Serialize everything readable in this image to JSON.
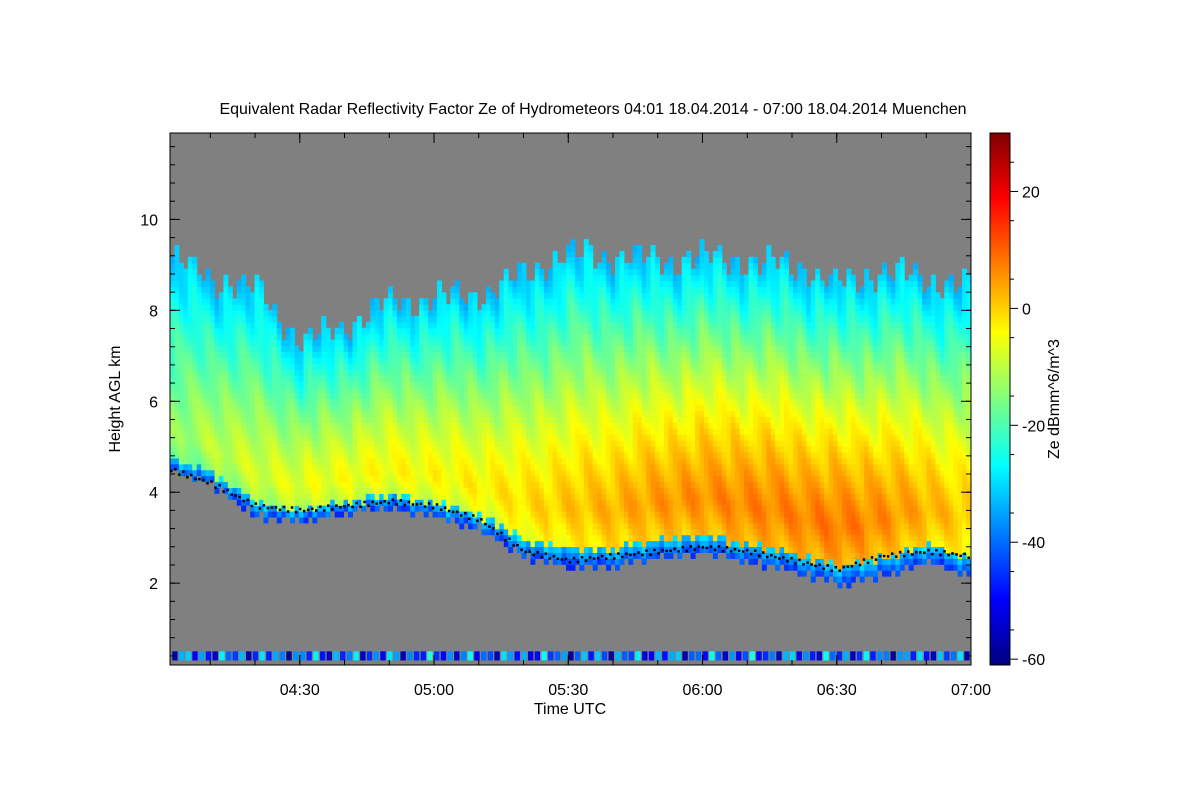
{
  "chart_data": {
    "type": "heatmap",
    "title": "Equivalent Radar Reflectivity Factor Ze of Hydrometeors   04:01 18.04.2014 - 07:00 18.04.2014 Muenchen",
    "xlabel": "Time UTC",
    "ylabel": "Height AGL km",
    "colorbar_label": "Ze dBmm^6/m^3",
    "x_range_minutes": [
      241,
      420
    ],
    "x_ticks": [
      {
        "minute": 270,
        "label": "04:30"
      },
      {
        "minute": 300,
        "label": "05:00"
      },
      {
        "minute": 330,
        "label": "05:30"
      },
      {
        "minute": 360,
        "label": "06:00"
      },
      {
        "minute": 390,
        "label": "06:30"
      },
      {
        "minute": 420,
        "label": "07:00"
      }
    ],
    "ylim_km": [
      0.2,
      11.9
    ],
    "y_ticks": [
      {
        "value": 2,
        "label": "2"
      },
      {
        "value": 4,
        "label": "4"
      },
      {
        "value": 6,
        "label": "6"
      },
      {
        "value": 8,
        "label": "8"
      },
      {
        "value": 10,
        "label": "10"
      }
    ],
    "colorbar_range_dbz": [
      -61,
      30
    ],
    "colorbar_ticks": [
      {
        "value": 20,
        "label": "20"
      },
      {
        "value": 0,
        "label": "0"
      },
      {
        "value": -20,
        "label": "-20"
      },
      {
        "value": -40,
        "label": "-40"
      },
      {
        "value": -60,
        "label": "-60"
      }
    ],
    "colormap": [
      "#00007f",
      "#0000ff",
      "#007fff",
      "#00ffff",
      "#7fff7f",
      "#ffff00",
      "#ff7f00",
      "#ff0000",
      "#7f0000"
    ],
    "background_color": "#808080",
    "cloud_profile": {
      "time_minutes": [
        241,
        250,
        260,
        270,
        280,
        290,
        300,
        310,
        320,
        330,
        340,
        350,
        360,
        370,
        380,
        390,
        400,
        410,
        420
      ],
      "top_km": [
        9.1,
        8.6,
        8.4,
        7.2,
        7.6,
        8.1,
        8.2,
        8.3,
        8.7,
        9.2,
        9.1,
        9.0,
        9.1,
        9.0,
        8.9,
        8.5,
        8.8,
        8.6,
        8.4
      ],
      "base_km": [
        4.4,
        4.1,
        3.4,
        3.3,
        3.5,
        3.6,
        3.4,
        3.1,
        2.5,
        2.3,
        2.3,
        2.5,
        2.6,
        2.4,
        2.2,
        1.9,
        2.1,
        2.4,
        2.1
      ],
      "peak_dbz": [
        -14,
        -10,
        -8,
        -6,
        -5,
        -4,
        -4,
        -3,
        -1,
        1,
        3,
        5,
        6,
        7,
        7,
        8,
        6,
        3,
        0
      ]
    },
    "melting_layer_km": {
      "time_minutes": [
        241,
        250,
        260,
        270,
        280,
        290,
        300,
        310,
        320,
        330,
        340,
        350,
        360,
        370,
        380,
        390,
        400,
        410,
        420
      ],
      "height_km": [
        4.5,
        4.2,
        3.7,
        3.6,
        3.7,
        3.8,
        3.7,
        3.4,
        2.7,
        2.5,
        2.6,
        2.7,
        2.8,
        2.7,
        2.5,
        2.3,
        2.6,
        2.7,
        2.6
      ]
    },
    "near_ground_clutter_km": [
      0.3,
      0.5
    ]
  }
}
